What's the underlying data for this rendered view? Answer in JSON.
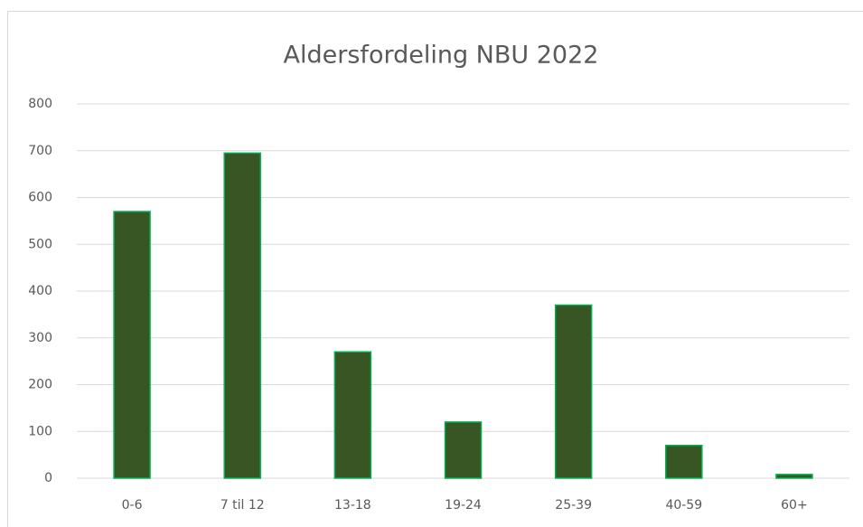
{
  "chart_data": {
    "type": "bar",
    "title": "Aldersfordeling NBU 2022",
    "categories": [
      "0-6",
      "7 til 12",
      "13-18",
      "19-24",
      "25-39",
      "40-59",
      "60+"
    ],
    "values": [
      570,
      695,
      270,
      120,
      370,
      70,
      8
    ],
    "color": "#375623",
    "edge_color": "#00b050",
    "ylim": [
      0,
      800
    ],
    "yticks": [
      0,
      100,
      200,
      300,
      400,
      500,
      600,
      700,
      800
    ],
    "grid": true
  }
}
